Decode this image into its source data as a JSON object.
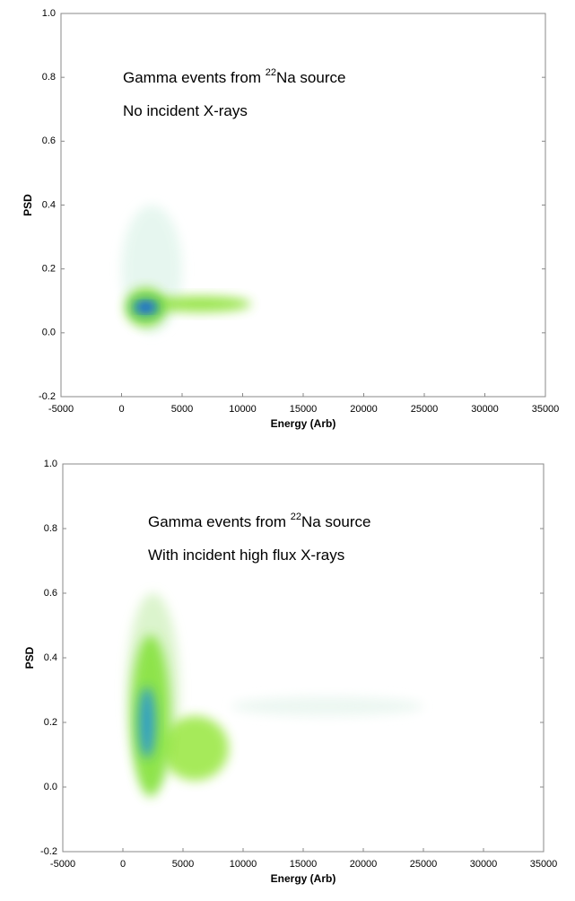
{
  "chart_data": [
    {
      "type": "density",
      "annotations": [
        {
          "text_before": "Gamma events from ",
          "superscript": "22",
          "text_after": "Na source"
        },
        {
          "text_before": "No incident X-rays"
        }
      ],
      "x_label": "Energy (Arb)",
      "y_label": "PSD",
      "xlim": [
        -5000,
        35000
      ],
      "xticks": [
        -5000,
        0,
        5000,
        10000,
        15000,
        20000,
        25000,
        30000,
        35000
      ],
      "ylim": [
        -0.2,
        1.0
      ],
      "yticks": [
        {
          "value": -0.2,
          "label": "-0.2"
        },
        {
          "value": 0,
          "label": "0.0"
        },
        {
          "value": 0.2,
          "label": "0.2"
        },
        {
          "value": 0.4,
          "label": "0.4"
        },
        {
          "value": 0.6,
          "label": "0.6"
        },
        {
          "value": 0.8,
          "label": "0.8"
        },
        {
          "value": 1.0,
          "label": "1.0"
        }
      ],
      "regions": [
        {
          "x": 2500,
          "y": 0.2,
          "rx": 2500,
          "ry": 0.2,
          "color": "#e4f6ee"
        },
        {
          "x": 6500,
          "y": 0.09,
          "rx": 4200,
          "ry": 0.025,
          "color": "#8fe23a"
        },
        {
          "x": 2000,
          "y": 0.08,
          "rx": 1700,
          "ry": 0.06,
          "color": "#7ddc2a"
        },
        {
          "x": 2000,
          "y": 0.08,
          "rx": 1100,
          "ry": 0.025,
          "color": "#1a8ad8"
        },
        {
          "x": 2000,
          "y": 0.08,
          "rx": 600,
          "ry": 0.012,
          "color": "#1f3fd0"
        }
      ]
    },
    {
      "type": "density",
      "annotations": [
        {
          "text_before": "Gamma events from ",
          "superscript": "22",
          "text_after": "Na source"
        },
        {
          "text_before": "With incident high flux X-rays"
        }
      ],
      "x_label": "Energy (Arb)",
      "y_label": "PSD",
      "xlim": [
        -5000,
        35000
      ],
      "xticks": [
        -5000,
        0,
        5000,
        10000,
        15000,
        20000,
        25000,
        30000,
        35000
      ],
      "ylim": [
        -0.2,
        1.0
      ],
      "yticks": [
        {
          "value": -0.2,
          "label": "-0.2"
        },
        {
          "value": 0,
          "label": "0.0"
        },
        {
          "value": 0.2,
          "label": "0.2"
        },
        {
          "value": 0.4,
          "label": "0.4"
        },
        {
          "value": 0.6,
          "label": "0.6"
        },
        {
          "value": 0.8,
          "label": "0.8"
        },
        {
          "value": 1.0,
          "label": "1.0"
        }
      ],
      "regions": [
        {
          "x": 17000,
          "y": 0.25,
          "rx": 8000,
          "ry": 0.03,
          "color": "#eaf6f0"
        },
        {
          "x": 2500,
          "y": 0.3,
          "rx": 2200,
          "ry": 0.3,
          "color": "#d8f3c8"
        },
        {
          "x": 6000,
          "y": 0.12,
          "rx": 2800,
          "ry": 0.1,
          "color": "#9de84a"
        },
        {
          "x": 2300,
          "y": 0.22,
          "rx": 1600,
          "ry": 0.25,
          "color": "#86e23c"
        },
        {
          "x": 2000,
          "y": 0.2,
          "rx": 700,
          "ry": 0.11,
          "color": "#2a9ad0"
        }
      ]
    }
  ]
}
